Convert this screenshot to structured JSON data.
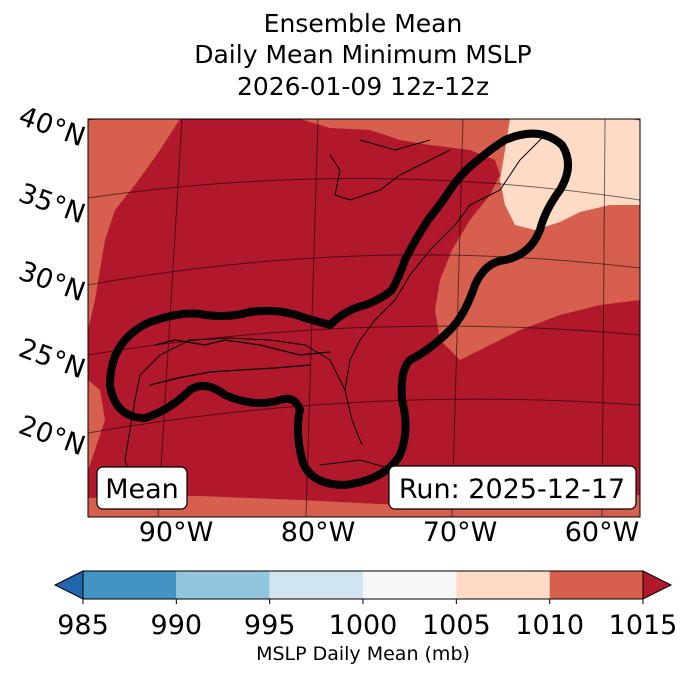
{
  "chart_data": {
    "type": "heatmap",
    "title_lines": [
      "Ensemble Mean",
      "Daily Mean Minimum MSLP",
      "2026-01-09 12z-12z"
    ],
    "variable": "MSLP Daily Mean",
    "units": "mb",
    "colorbar": {
      "label": "MSLP Daily Mean (mb)",
      "ticks": [
        "985",
        "990",
        "995",
        "1000",
        "1005",
        "1010",
        "1015"
      ],
      "bins": [
        {
          "from": 985,
          "to": 990,
          "color": "#4393c3"
        },
        {
          "from": 990,
          "to": 995,
          "color": "#92c5de"
        },
        {
          "from": 995,
          "to": 1000,
          "color": "#d1e5f0"
        },
        {
          "from": 1000,
          "to": 1005,
          "color": "#f7f7f7"
        },
        {
          "from": 1005,
          "to": 1010,
          "color": "#fddbc7"
        },
        {
          "from": 1010,
          "to": 1015,
          "color": "#d6604d"
        }
      ],
      "under_color": "#2166ac",
      "over_color": "#b2182b"
    },
    "lat_labels": [
      "40°N",
      "35°N",
      "30°N",
      "25°N",
      "20°N"
    ],
    "lon_labels": [
      "90°W",
      "80°W",
      "70°W",
      "60°W"
    ],
    "regions": [
      {
        "name": "above-1015",
        "color": "#b2182b"
      },
      {
        "name": "1010-1015",
        "color": "#d6604d"
      },
      {
        "name": "1005-1010",
        "color": "#fddbc7"
      }
    ],
    "contour": {
      "description": "ensemble low-pressure track outline",
      "color": "#000000"
    },
    "annotations": {
      "left": "Mean",
      "right": "Run: 2025-12-17"
    }
  }
}
